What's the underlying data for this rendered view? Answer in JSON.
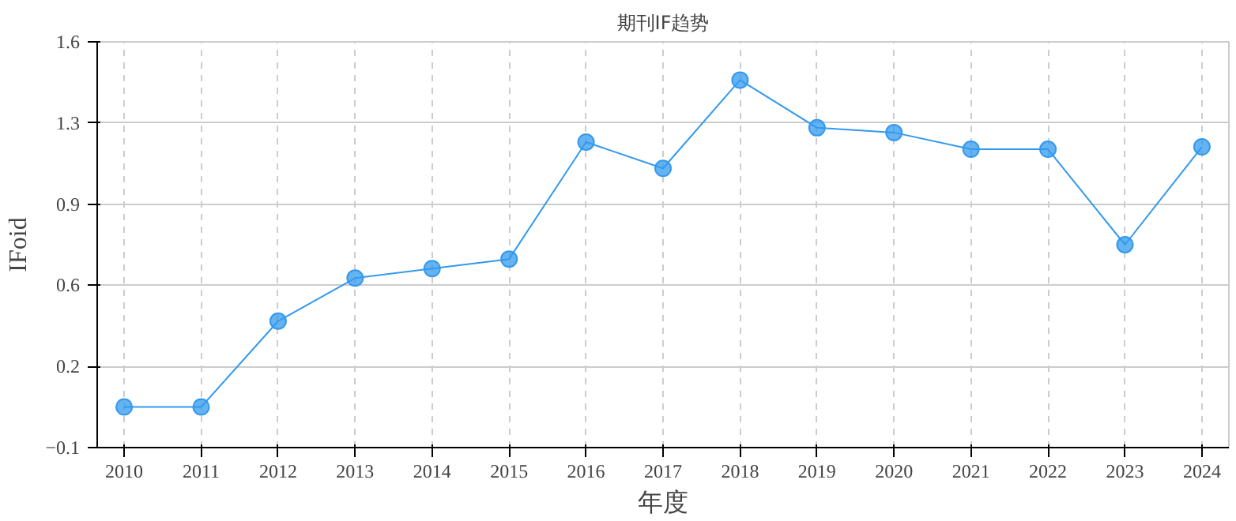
{
  "chart_data": {
    "type": "line",
    "title": "期刊IF趋势",
    "xlabel": "年度",
    "ylabel": "IFoid",
    "categories": [
      "2010",
      "2011",
      "2012",
      "2013",
      "2014",
      "2015",
      "2016",
      "2017",
      "2018",
      "2019",
      "2020",
      "2021",
      "2022",
      "2023",
      "2024"
    ],
    "series": [
      {
        "color": "#3399ee",
        "values": [
          0.07,
          0.07,
          0.43,
          0.61,
          0.65,
          0.69,
          1.18,
          1.07,
          1.44,
          1.24,
          1.22,
          1.15,
          1.15,
          0.75,
          1.16
        ]
      }
    ],
    "ylim": [
      -0.1,
      1.6
    ],
    "yticks": [
      -0.1,
      {
        "value": 0.24,
        "label": "0.2"
      },
      {
        "value": 0.58,
        "label": "0.6"
      },
      {
        "value": 0.92,
        "label": "0.9"
      },
      {
        "value": 1.26,
        "label": "1.3"
      },
      1.6
    ],
    "grid": true,
    "marker": "circle",
    "line_style": "solid"
  }
}
